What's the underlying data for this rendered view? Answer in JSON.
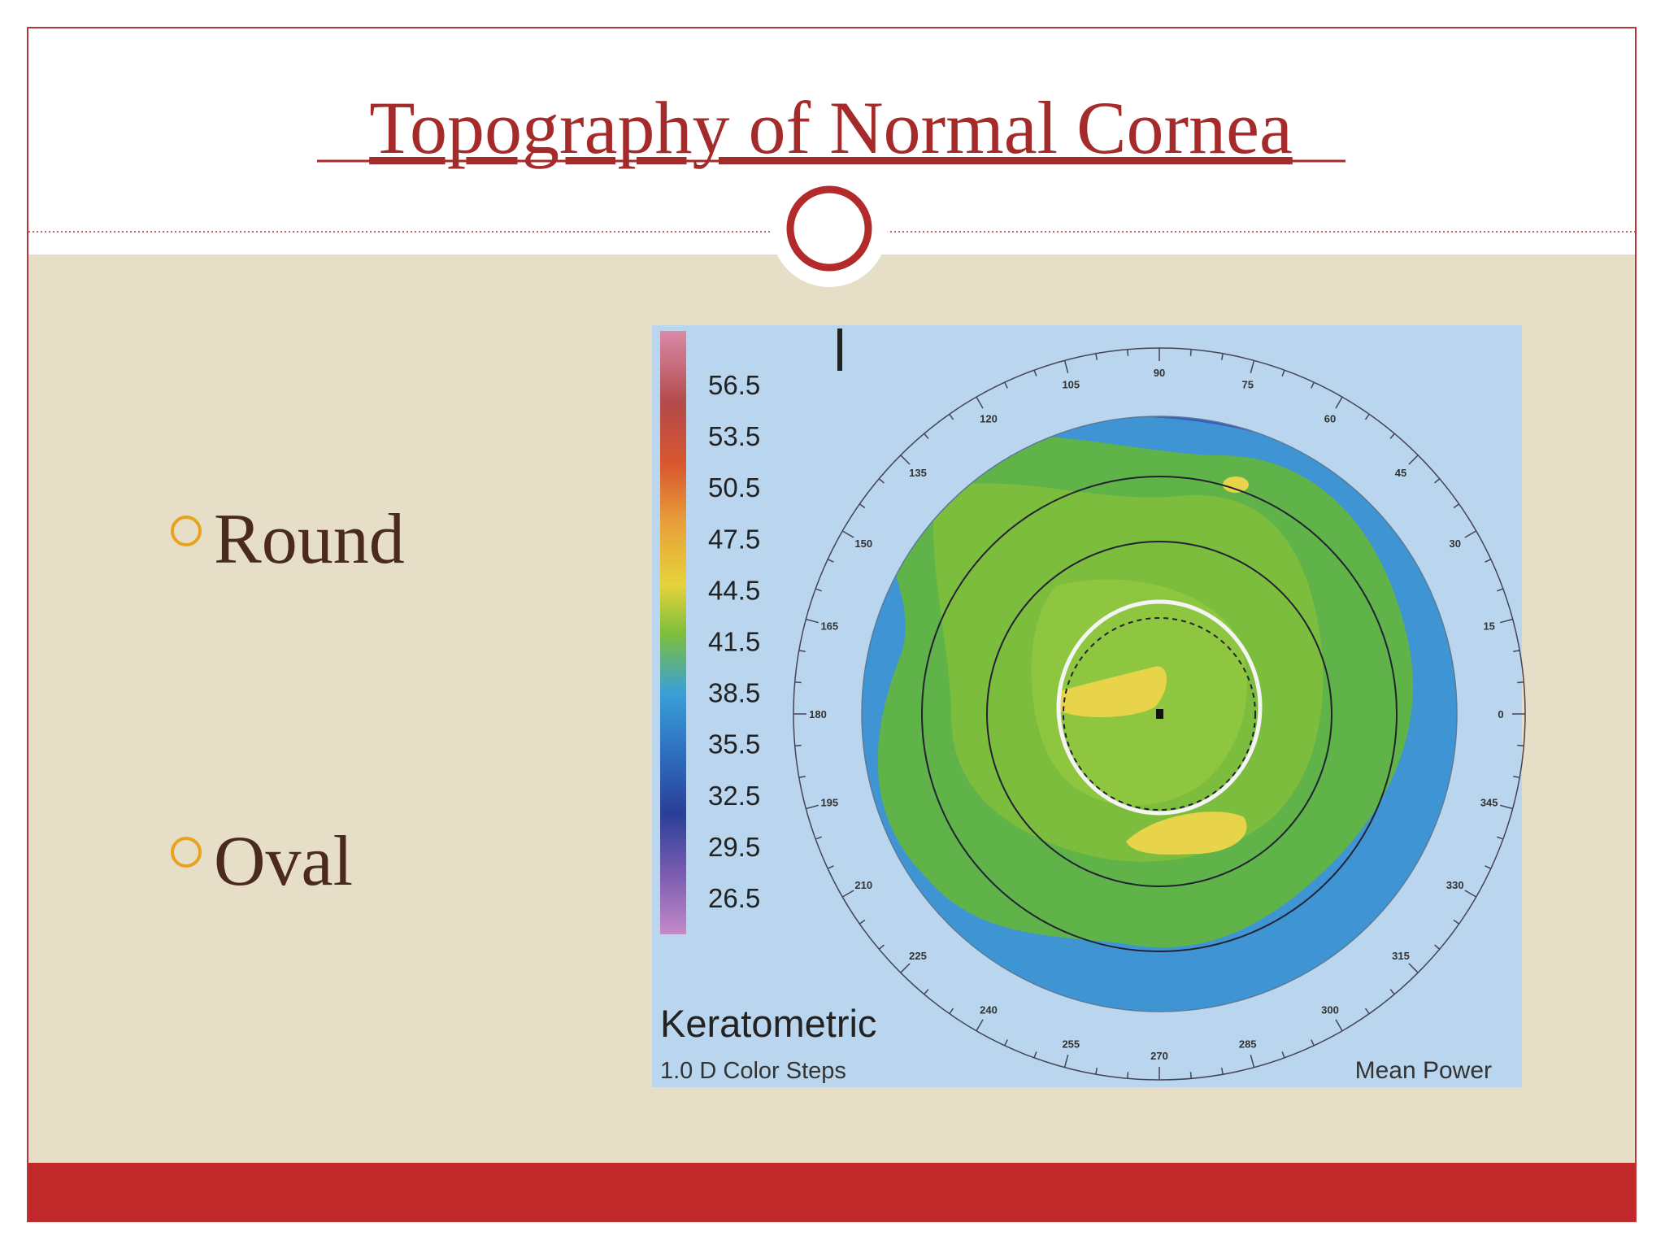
{
  "header": {
    "title": "Topography of Normal Cornea"
  },
  "bullets": [
    "Round",
    "Oval"
  ],
  "figure": {
    "scale_labels": [
      "56.5",
      "53.5",
      "50.5",
      "47.5",
      "44.5",
      "41.5",
      "38.5",
      "35.5",
      "32.5",
      "29.5",
      "26.5"
    ],
    "angle_labels": [
      "0",
      "15",
      "30",
      "45",
      "60",
      "75",
      "90",
      "105",
      "120",
      "135",
      "150",
      "165",
      "180",
      "195",
      "210",
      "225",
      "240",
      "255",
      "270",
      "285",
      "300",
      "315",
      "330",
      "345"
    ],
    "map_title": "Keratometric",
    "map_subtitle": "1.0 D Color Steps",
    "map_mode": "Mean Power"
  }
}
